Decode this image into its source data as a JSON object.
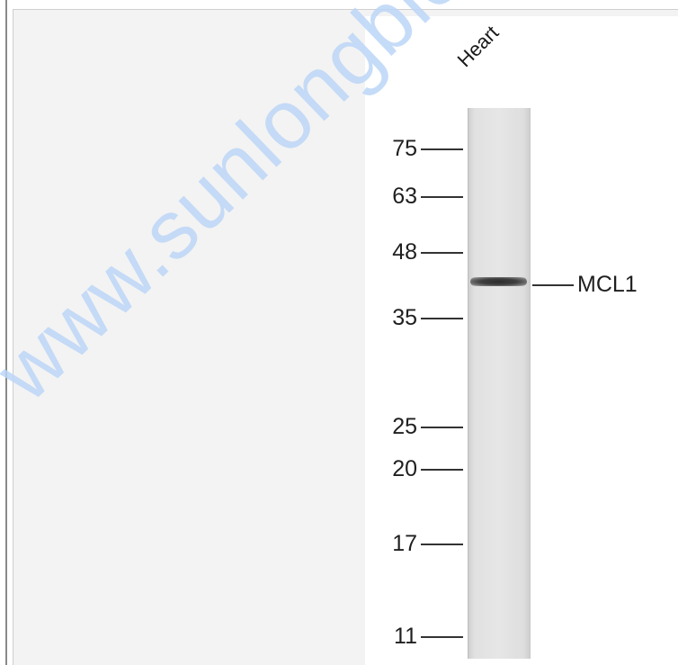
{
  "blot": {
    "lane_label": "Heart",
    "protein_label": "MCL1",
    "markers": [
      "75",
      "63",
      "48",
      "35",
      "25",
      "20",
      "17",
      "11"
    ]
  },
  "watermark": {
    "text": "www.sunlongbiotech.com"
  },
  "colors": {
    "panel_background": "#f3f3f3",
    "blot_background": "#ffffff",
    "watermark": "#bcd6f7",
    "band": "#2c2c2c"
  }
}
